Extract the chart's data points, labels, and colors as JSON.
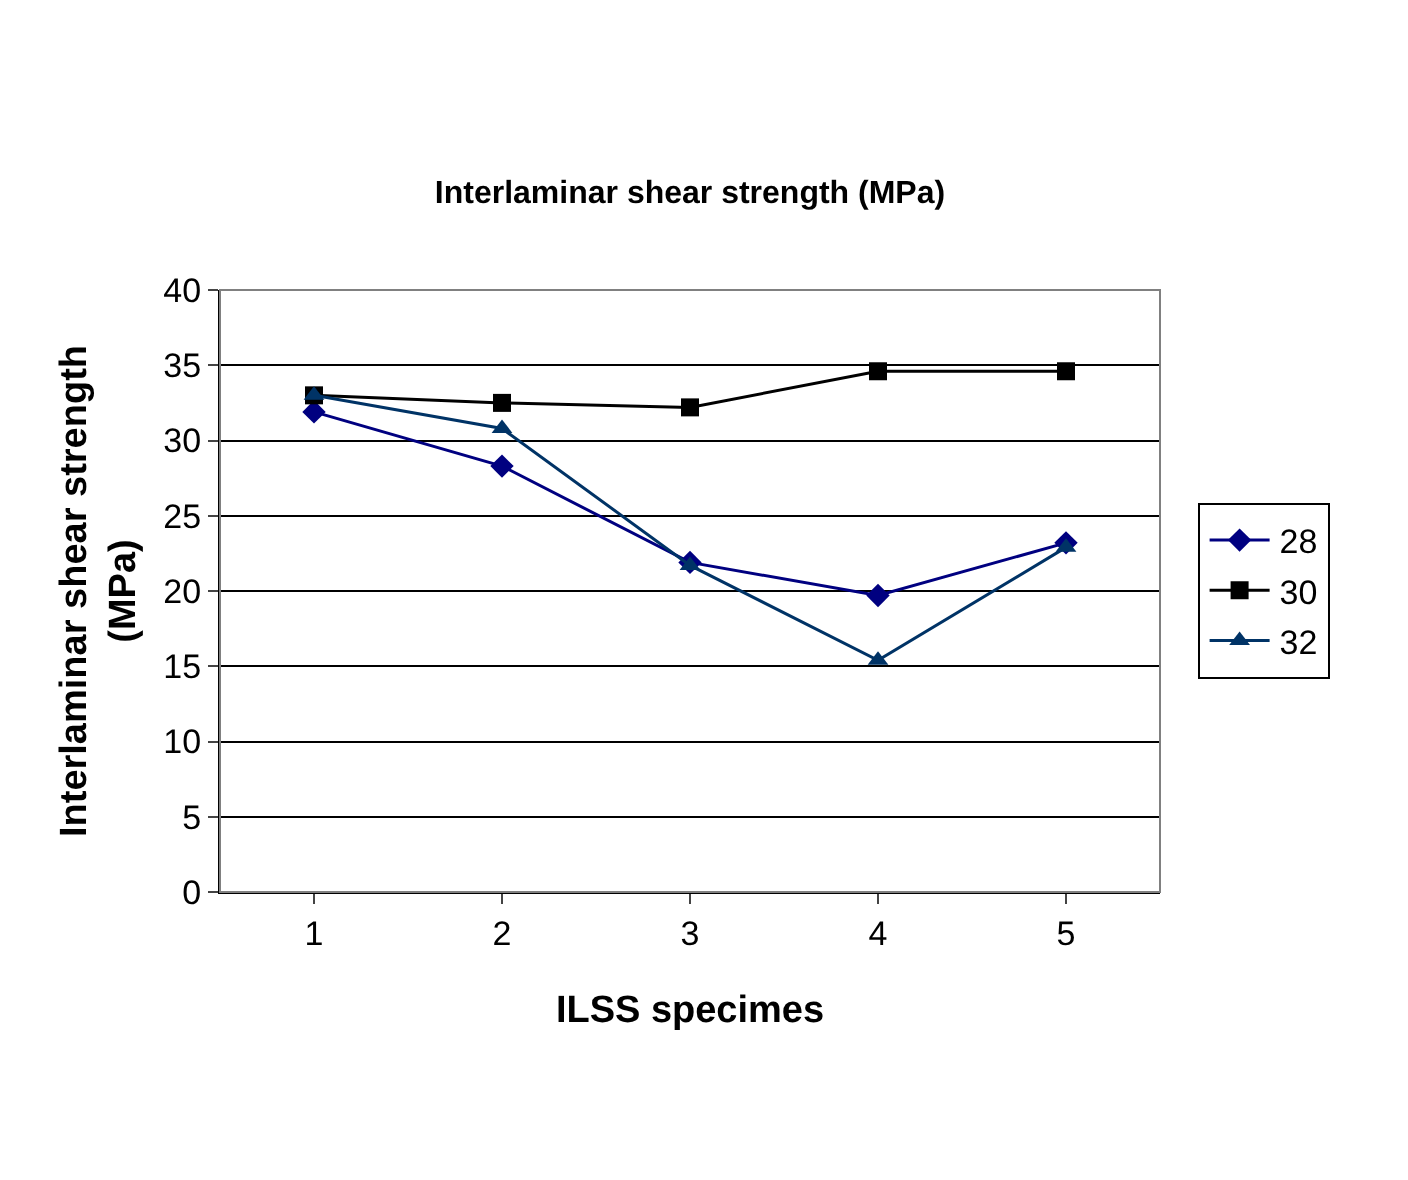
{
  "chart_data": {
    "type": "line",
    "title": "Interlaminar shear strength (MPa)",
    "xlabel": "ILSS specimes",
    "ylabel": "Interlaminar shear strength (MPa)",
    "categories": [
      "1",
      "2",
      "3",
      "4",
      "5"
    ],
    "series": [
      {
        "name": "28",
        "color": "#000080",
        "marker": "diamond",
        "values": [
          31.9,
          28.3,
          21.9,
          19.7,
          23.2
        ]
      },
      {
        "name": "30",
        "color": "#000000",
        "marker": "square",
        "values": [
          33.0,
          32.5,
          32.2,
          34.6,
          34.6
        ]
      },
      {
        "name": "32",
        "color": "#003366",
        "marker": "triangle",
        "values": [
          33.0,
          30.8,
          21.7,
          15.4,
          22.9
        ]
      }
    ],
    "ylim": [
      0,
      40
    ],
    "yticks": [
      0,
      5,
      10,
      15,
      20,
      25,
      30,
      35,
      40
    ],
    "grid": "y",
    "legend": "right",
    "line_style": "solid"
  }
}
